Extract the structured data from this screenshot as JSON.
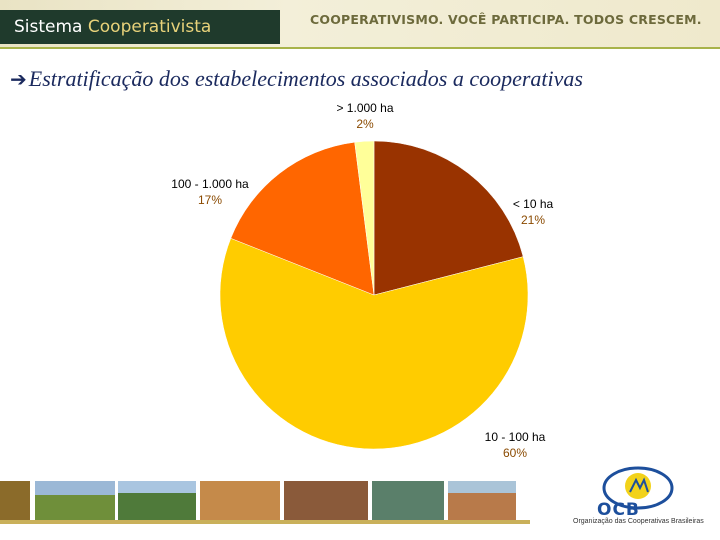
{
  "header": {
    "brand_word1": "Sistema",
    "brand_word2": "Cooperativista",
    "slogan": "COOPERATIVISMO. VOCÊ PARTICIPA. TODOS CRESCEM."
  },
  "heading": {
    "arrow": "è",
    "text": "Estratificação dos estabelecimentos associados a cooperativas"
  },
  "chart_data": {
    "type": "pie",
    "title": "",
    "slices": [
      {
        "label": "< 10 ha",
        "value": 21,
        "display": "21%",
        "color": "#993300"
      },
      {
        "label": "10 - 100 ha",
        "value": 60,
        "display": "60%",
        "color": "#ffcc00"
      },
      {
        "label": "100 - 1.000 ha",
        "value": 17,
        "display": "17%",
        "color": "#ff6600"
      },
      {
        "label": "> 1.000 ha",
        "value": 2,
        "display": "2%",
        "color": "#ffff99"
      }
    ]
  },
  "logo": {
    "name": "OCB",
    "subtitle": "Organização das Cooperativas Brasileiras"
  },
  "colors": {
    "brand_bg": "#1f3a2c",
    "heading": "#1b2a5e",
    "percent": "#8a4a00"
  }
}
